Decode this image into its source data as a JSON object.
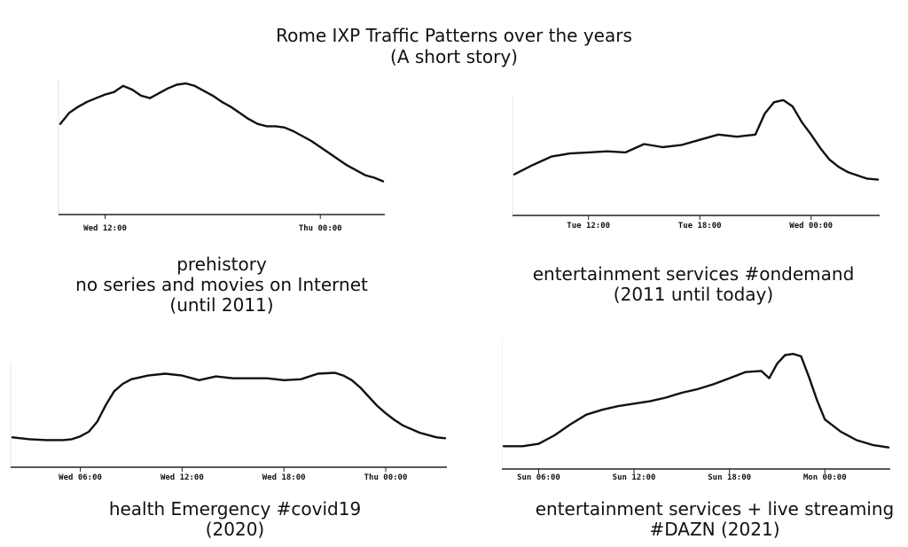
{
  "title": "Rome IXP Traffic Patterns over the years",
  "subtitle": "(A short story)",
  "colors": {
    "line": "#111111",
    "axis": "#222222",
    "background": "#ffffff"
  },
  "chart_data": [
    {
      "type": "line",
      "title": "prehistory",
      "caption_lines": [
        "prehistory",
        "no series and movies on Internet",
        "(until 2011)"
      ],
      "x_ticks": [
        {
          "t": 12,
          "label": "Wed 12:00"
        },
        {
          "t": 24,
          "label": "Thu 00:00"
        }
      ],
      "xlim": [
        9.5,
        27.5
      ],
      "ylim": [
        0,
        100
      ],
      "x": [
        9.5,
        10,
        10.5,
        11,
        11.5,
        12,
        12.5,
        13,
        13.5,
        14,
        14.5,
        15,
        15.5,
        16,
        16.5,
        17,
        17.5,
        18,
        18.5,
        19,
        19.5,
        20,
        20.5,
        21,
        21.5,
        22,
        22.5,
        23,
        23.5,
        24,
        24.5,
        25,
        25.5,
        26,
        26.5,
        27,
        27.5
      ],
      "values": [
        64,
        73,
        78,
        82,
        85,
        88,
        90,
        95,
        92,
        87,
        85,
        89,
        93,
        96,
        97,
        95,
        91,
        87,
        82,
        78,
        73,
        68,
        64,
        62,
        62,
        61,
        58,
        54,
        50,
        45,
        40,
        35,
        30,
        26,
        22,
        20,
        17
      ]
    },
    {
      "type": "line",
      "title": "entertainment services #ondemand",
      "caption_lines": [
        "entertainment services #ondemand",
        "(2011 until today)"
      ],
      "x_ticks": [
        {
          "t": 12,
          "label": "Tue 12:00"
        },
        {
          "t": 18,
          "label": "Tue 18:00"
        },
        {
          "t": 24,
          "label": "Wed 00:00"
        }
      ],
      "xlim": [
        8,
        27.6
      ],
      "ylim": [
        0,
        100
      ],
      "x": [
        8,
        9,
        10,
        11,
        12,
        13,
        14,
        15,
        16,
        17,
        18,
        19,
        20,
        21,
        21.5,
        22,
        22.5,
        23,
        23.5,
        24,
        24.5,
        25,
        25.5,
        26,
        26.5,
        27,
        27.6
      ],
      "values": [
        24,
        33,
        41,
        44,
        45,
        46,
        45,
        53,
        50,
        52,
        57,
        62,
        60,
        62,
        82,
        93,
        95,
        89,
        74,
        62,
        49,
        38,
        31,
        26,
        23,
        20,
        19
      ]
    },
    {
      "type": "line",
      "title": "health Emergency #covid19",
      "caption_lines": [
        "health Emergency #covid19",
        "(2020)"
      ],
      "x_ticks": [
        {
          "t": 6,
          "label": "Wed 06:00"
        },
        {
          "t": 12,
          "label": "Wed 12:00"
        },
        {
          "t": 18,
          "label": "Wed 18:00"
        },
        {
          "t": 24,
          "label": "Thu 00:00"
        }
      ],
      "xlim": [
        2,
        27.5
      ],
      "ylim": [
        0,
        100
      ],
      "x": [
        2,
        3,
        4,
        5,
        5.5,
        6,
        6.5,
        7,
        7.5,
        8,
        8.5,
        9,
        10,
        11,
        12,
        13,
        14,
        15,
        16,
        17,
        18,
        19,
        20,
        21,
        21.5,
        22,
        22.5,
        23,
        23.5,
        24,
        24.5,
        25,
        26,
        27,
        27.5
      ],
      "values": [
        18,
        16,
        15,
        15,
        16,
        19,
        24,
        35,
        53,
        68,
        76,
        81,
        85,
        87,
        85,
        80,
        84,
        82,
        82,
        82,
        80,
        81,
        87,
        88,
        85,
        80,
        72,
        62,
        52,
        44,
        37,
        31,
        23,
        18,
        17
      ]
    },
    {
      "type": "line",
      "title": "entertainment services + live streaming #DAZN",
      "caption_lines": [
        "entertainment services + live streaming",
        "#DAZN (2021)"
      ],
      "x_ticks": [
        {
          "t": 6,
          "label": "Sun 06:00"
        },
        {
          "t": 12,
          "label": "Sun 12:00"
        },
        {
          "t": 18,
          "label": "Sun 18:00"
        },
        {
          "t": 24,
          "label": "Mon 00:00"
        }
      ],
      "xlim": [
        3.8,
        28
      ],
      "ylim": [
        0,
        100
      ],
      "x": [
        3.8,
        5,
        6,
        7,
        8,
        9,
        10,
        11,
        12,
        13,
        14,
        15,
        16,
        17,
        18,
        19,
        20,
        20.5,
        21,
        21.5,
        22,
        22.5,
        23,
        23.5,
        24,
        25,
        26,
        27,
        28
      ],
      "values": [
        10,
        10,
        12,
        19,
        28,
        36,
        40,
        43,
        45,
        47,
        50,
        54,
        57,
        61,
        66,
        71,
        72,
        66,
        78,
        85,
        86,
        84,
        67,
        48,
        32,
        22,
        15,
        11,
        9
      ]
    }
  ]
}
